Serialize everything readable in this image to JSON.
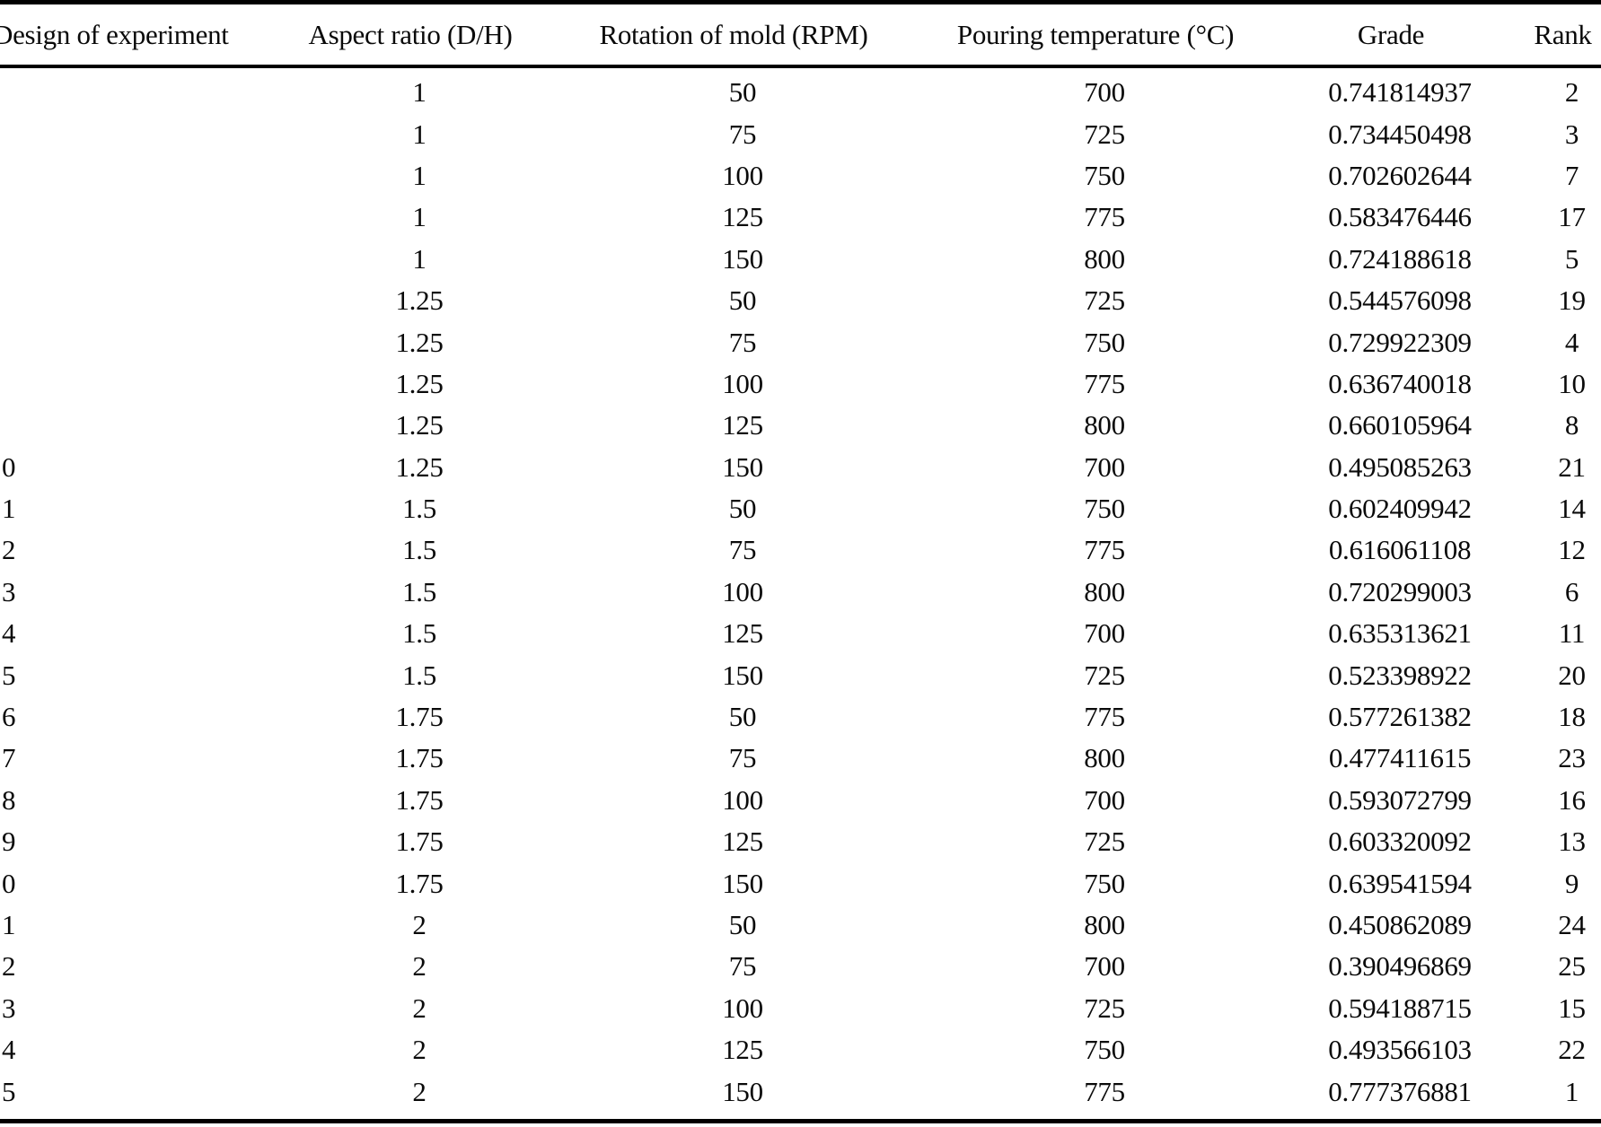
{
  "table": {
    "headers": [
      "Design of experiment",
      "Aspect ratio (D/H)",
      "Rotation of mold (RPM)",
      "Pouring temperature (°C)",
      "Grade",
      "Rank"
    ],
    "rows": [
      {
        "doe": "",
        "aspect": "1",
        "rpm": "50",
        "temp": "700",
        "grade": "0.741814937",
        "rank": "2"
      },
      {
        "doe": "",
        "aspect": "1",
        "rpm": "75",
        "temp": "725",
        "grade": "0.734450498",
        "rank": "3"
      },
      {
        "doe": "",
        "aspect": "1",
        "rpm": "100",
        "temp": "750",
        "grade": "0.702602644",
        "rank": "7"
      },
      {
        "doe": "",
        "aspect": "1",
        "rpm": "125",
        "temp": "775",
        "grade": "0.583476446",
        "rank": "17"
      },
      {
        "doe": "",
        "aspect": "1",
        "rpm": "150",
        "temp": "800",
        "grade": "0.724188618",
        "rank": "5"
      },
      {
        "doe": "",
        "aspect": "1.25",
        "rpm": "50",
        "temp": "725",
        "grade": "0.544576098",
        "rank": "19"
      },
      {
        "doe": "",
        "aspect": "1.25",
        "rpm": "75",
        "temp": "750",
        "grade": "0.729922309",
        "rank": "4"
      },
      {
        "doe": "",
        "aspect": "1.25",
        "rpm": "100",
        "temp": "775",
        "grade": "0.636740018",
        "rank": "10"
      },
      {
        "doe": "",
        "aspect": "1.25",
        "rpm": "125",
        "temp": "800",
        "grade": "0.660105964",
        "rank": "8"
      },
      {
        "doe": "0",
        "aspect": "1.25",
        "rpm": "150",
        "temp": "700",
        "grade": "0.495085263",
        "rank": "21"
      },
      {
        "doe": "1",
        "aspect": "1.5",
        "rpm": "50",
        "temp": "750",
        "grade": "0.602409942",
        "rank": "14"
      },
      {
        "doe": "2",
        "aspect": "1.5",
        "rpm": "75",
        "temp": "775",
        "grade": "0.616061108",
        "rank": "12"
      },
      {
        "doe": "3",
        "aspect": "1.5",
        "rpm": "100",
        "temp": "800",
        "grade": "0.720299003",
        "rank": "6"
      },
      {
        "doe": "4",
        "aspect": "1.5",
        "rpm": "125",
        "temp": "700",
        "grade": "0.635313621",
        "rank": "11"
      },
      {
        "doe": "5",
        "aspect": "1.5",
        "rpm": "150",
        "temp": "725",
        "grade": "0.523398922",
        "rank": "20"
      },
      {
        "doe": "6",
        "aspect": "1.75",
        "rpm": "50",
        "temp": "775",
        "grade": "0.577261382",
        "rank": "18"
      },
      {
        "doe": "7",
        "aspect": "1.75",
        "rpm": "75",
        "temp": "800",
        "grade": "0.477411615",
        "rank": "23"
      },
      {
        "doe": "8",
        "aspect": "1.75",
        "rpm": "100",
        "temp": "700",
        "grade": "0.593072799",
        "rank": "16"
      },
      {
        "doe": "9",
        "aspect": "1.75",
        "rpm": "125",
        "temp": "725",
        "grade": "0.603320092",
        "rank": "13"
      },
      {
        "doe": "0",
        "aspect": "1.75",
        "rpm": "150",
        "temp": "750",
        "grade": "0.639541594",
        "rank": "9"
      },
      {
        "doe": "1",
        "aspect": "2",
        "rpm": "50",
        "temp": "800",
        "grade": "0.450862089",
        "rank": "24"
      },
      {
        "doe": "2",
        "aspect": "2",
        "rpm": "75",
        "temp": "700",
        "grade": "0.390496869",
        "rank": "25"
      },
      {
        "doe": "3",
        "aspect": "2",
        "rpm": "100",
        "temp": "725",
        "grade": "0.594188715",
        "rank": "15"
      },
      {
        "doe": "4",
        "aspect": "2",
        "rpm": "125",
        "temp": "750",
        "grade": "0.493566103",
        "rank": "22"
      },
      {
        "doe": "5",
        "aspect": "2",
        "rpm": "150",
        "temp": "775",
        "grade": "0.777376881",
        "rank": "1"
      }
    ]
  },
  "colors": {
    "background": "#ffffff",
    "text": "#0a0a0a",
    "rule": "#000000"
  }
}
